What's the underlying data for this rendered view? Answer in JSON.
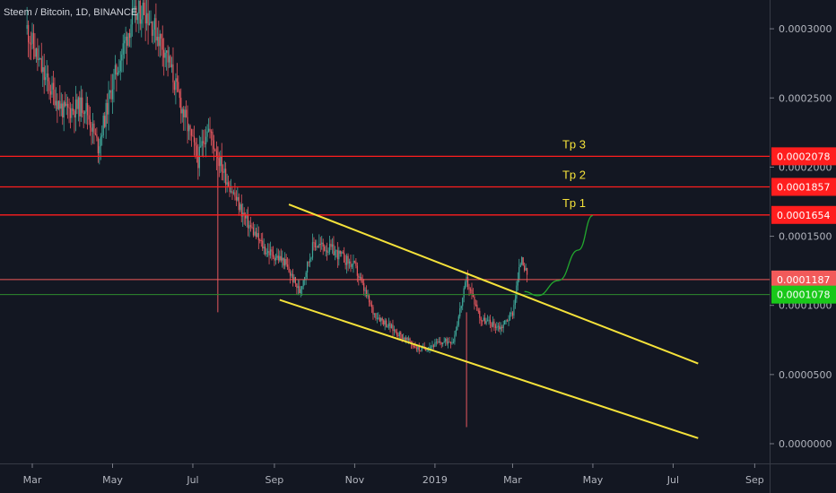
{
  "header": {
    "symbol_label": "Steem / Bitcoin, 1D, BINANCE"
  },
  "colors": {
    "background": "#131722",
    "up_candle": "#3fa89a",
    "down_candle": "#e8585f",
    "resistance_line": "#ff1e1e",
    "support_line": "#2e8b2e",
    "channel_line": "#f5e23a",
    "projection_curve": "#22a82e",
    "tag_red": "#ff1e1e",
    "tag_last": "#f25a5a",
    "tag_green": "#19c819"
  },
  "chart_data": {
    "type": "candlestick",
    "title": "Steem / Bitcoin, 1D, BINANCE",
    "x_tick_labels": [
      "Mar",
      "May",
      "Jul",
      "Sep",
      "Nov",
      "2019",
      "Mar",
      "May",
      "Jul",
      "Sep"
    ],
    "y_tick_labels": [
      "0.0003000",
      "0.0002500",
      "0.0002000",
      "0.0001500",
      "0.0001000",
      "0.0000500",
      "0.0000000"
    ],
    "ylim": [
      0,
      0.000314
    ],
    "price_series_approx": [
      {
        "date": "2018-02-25",
        "close": 0.0003
      },
      {
        "date": "2018-03-10",
        "close": 0.000265
      },
      {
        "date": "2018-03-25",
        "close": 0.00024
      },
      {
        "date": "2018-04-10",
        "close": 0.000245
      },
      {
        "date": "2018-04-20",
        "close": 0.000215
      },
      {
        "date": "2018-05-01",
        "close": 0.00026
      },
      {
        "date": "2018-05-15",
        "close": 0.000305
      },
      {
        "date": "2018-05-25",
        "close": 0.000315
      },
      {
        "date": "2018-06-10",
        "close": 0.000285
      },
      {
        "date": "2018-06-25",
        "close": 0.000235
      },
      {
        "date": "2018-07-05",
        "close": 0.000205
      },
      {
        "date": "2018-07-12",
        "close": 0.00023
      },
      {
        "date": "2018-07-25",
        "close": 0.000195
      },
      {
        "date": "2018-08-10",
        "close": 0.000162
      },
      {
        "date": "2018-08-25",
        "close": 0.00014
      },
      {
        "date": "2018-09-08",
        "close": 0.000132
      },
      {
        "date": "2018-09-20",
        "close": 0.00011
      },
      {
        "date": "2018-10-01",
        "close": 0.000145
      },
      {
        "date": "2018-10-15",
        "close": 0.00014
      },
      {
        "date": "2018-11-01",
        "close": 0.000128
      },
      {
        "date": "2018-11-15",
        "close": 9.5e-05
      },
      {
        "date": "2018-12-01",
        "close": 8.2e-05
      },
      {
        "date": "2018-12-20",
        "close": 6.8e-05
      },
      {
        "date": "2019-01-05",
        "close": 7.3e-05
      },
      {
        "date": "2019-01-15",
        "close": 7.5e-05
      },
      {
        "date": "2019-01-25",
        "close": 0.000118
      },
      {
        "date": "2019-02-05",
        "close": 9e-05
      },
      {
        "date": "2019-02-20",
        "close": 8.4e-05
      },
      {
        "date": "2019-03-01",
        "close": 9.5e-05
      },
      {
        "date": "2019-03-08",
        "close": 0.000137
      },
      {
        "date": "2019-03-12",
        "close": 0.000119
      }
    ],
    "horizontal_levels": [
      {
        "name": "Tp 3",
        "value": 0.0002078,
        "label": "0.0002078",
        "kind": "resistance"
      },
      {
        "name": "Tp 2",
        "value": 0.0001857,
        "label": "0.0001857",
        "kind": "resistance"
      },
      {
        "name": "Tp 1",
        "value": 0.0001654,
        "label": "0.0001654",
        "kind": "resistance"
      },
      {
        "name": "",
        "value": 0.0001187,
        "label": "0.0001187",
        "kind": "last_price"
      },
      {
        "name": "",
        "value": 0.0001078,
        "label": "0.0001078",
        "kind": "support"
      }
    ],
    "channel_lines": [
      {
        "start": {
          "date": "2018-09-12",
          "value": 0.000173
        },
        "end": {
          "date": "2019-07-20",
          "value": 5.8e-05
        }
      },
      {
        "start": {
          "date": "2018-09-05",
          "value": 0.000104
        },
        "end": {
          "date": "2019-07-20",
          "value": 4e-06
        }
      }
    ],
    "projection_curve": [
      {
        "date": "2019-03-10",
        "value": 0.00011
      },
      {
        "date": "2019-03-20",
        "value": 0.000107
      },
      {
        "date": "2019-04-05",
        "value": 0.000118
      },
      {
        "date": "2019-04-20",
        "value": 0.00014
      },
      {
        "date": "2019-05-01",
        "value": 0.000165
      }
    ]
  }
}
